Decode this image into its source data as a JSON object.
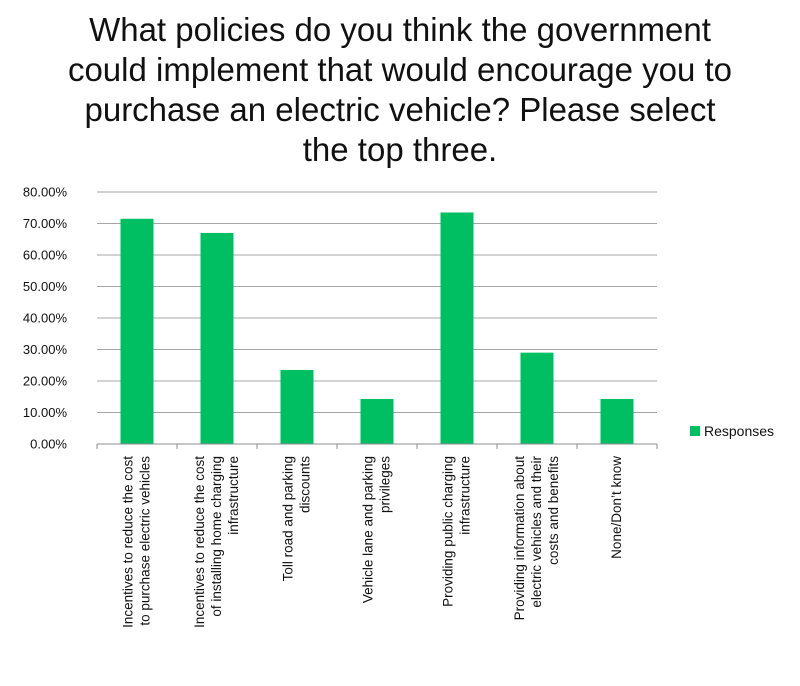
{
  "chart_data": {
    "type": "bar",
    "title": "What policies do you think the government could implement that would encourage you to purchase an electric vehicle? Please select the top three.",
    "categories": [
      [
        "Incentives to reduce the cost",
        "to purchase electric vehicles"
      ],
      [
        "Incentives to reduce the cost",
        "of installing home charging",
        "infrastructure"
      ],
      [
        "Toll road and parking",
        "discounts"
      ],
      [
        "Vehicle lane and parking",
        "privileges"
      ],
      [
        "Providing public charging",
        "infrastructure"
      ],
      [
        "Providing information about",
        "electric vehicles and their",
        "costs and benefits"
      ],
      [
        "None/Don’t know"
      ]
    ],
    "series": [
      {
        "name": "Responses",
        "values": [
          71.5,
          67.0,
          23.5,
          14.3,
          73.5,
          29.0,
          14.3
        ]
      }
    ],
    "yticks": [
      "0.00%",
      "10.00%",
      "20.00%",
      "30.00%",
      "40.00%",
      "50.00%",
      "60.00%",
      "70.00%",
      "80.00%"
    ],
    "ylim": [
      0,
      80
    ],
    "xlabel": "",
    "ylabel": "",
    "grid": true,
    "legend_position": "right",
    "colors": {
      "bar": "#00BF63",
      "grid": "#A6A6A6",
      "axis": "#8C8C8C"
    }
  }
}
